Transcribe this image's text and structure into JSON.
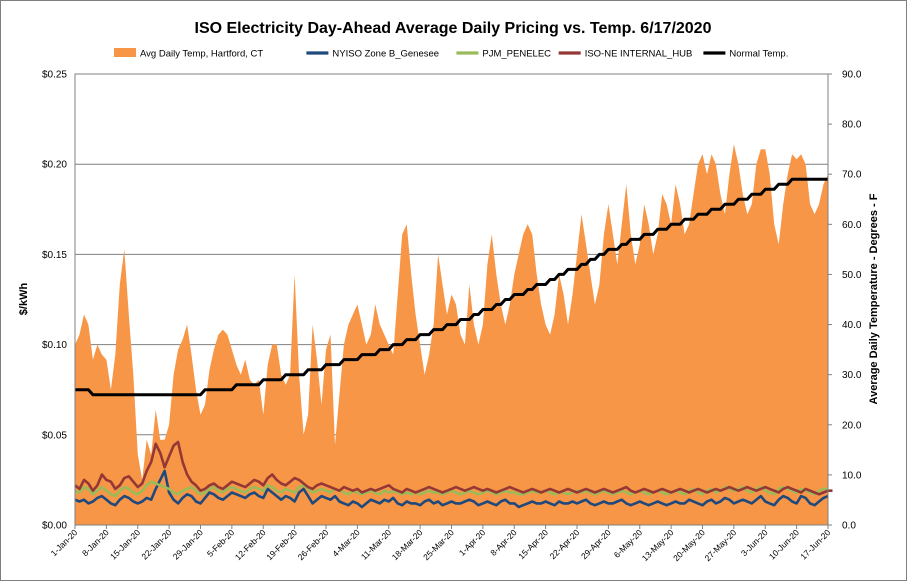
{
  "chart_data": {
    "type": "area",
    "title": "ISO Electricity Day-Ahead Average Daily Pricing vs. Temp. 6/17/2020",
    "ylabel_left": "$/kWh",
    "ylabel_right": "Average Daily Temperature - Degrees - F",
    "ylim_left": [
      0,
      0.25
    ],
    "ylim_right": [
      0,
      90
    ],
    "left_ticks": [
      "$0.00",
      "$0.05",
      "$0.10",
      "$0.15",
      "$0.20",
      "$0.25"
    ],
    "right_ticks": [
      "0.0",
      "10.0",
      "20.0",
      "30.0",
      "40.0",
      "50.0",
      "60.0",
      "70.0",
      "80.0",
      "90.0"
    ],
    "grid": true,
    "legend_position": "top",
    "x_labels": [
      "1-Jan-20",
      "8-Jan-20",
      "15-Jan-20",
      "22-Jan-20",
      "29-Jan-20",
      "5-Feb-20",
      "12-Feb-20",
      "19-Feb-20",
      "26-Feb-20",
      "4-Mar-20",
      "11-Mar-20",
      "18-Mar-20",
      "25-Mar-20",
      "1-Apr-20",
      "8-Apr-20",
      "15-Apr-20",
      "22-Apr-20",
      "29-Apr-20",
      "6-May-20",
      "13-May-20",
      "20-May-20",
      "27-May-20",
      "3-Jun-20",
      "10-Jun-20",
      "17-Jun-20"
    ],
    "day_count": 169,
    "series": [
      {
        "name": "Avg Daily Temp, Hartford, CT",
        "axis": "right",
        "kind": "area",
        "color": "#f79646",
        "values": [
          36,
          38,
          42,
          40,
          33,
          36,
          34,
          33,
          27,
          34,
          48,
          55,
          42,
          30,
          14,
          9,
          17,
          14,
          23,
          17,
          17,
          20,
          30,
          35,
          37,
          40,
          34,
          27,
          22,
          24,
          31,
          35,
          38,
          39,
          38,
          35,
          32,
          30,
          33,
          29,
          28,
          29,
          22,
          32,
          36,
          36,
          30,
          28,
          30,
          50,
          30,
          18,
          22,
          40,
          33,
          24,
          35,
          38,
          16,
          26,
          36,
          40,
          42,
          44,
          40,
          36,
          38,
          44,
          40,
          38,
          36,
          34,
          46,
          58,
          60,
          50,
          42,
          36,
          30,
          34,
          40,
          54,
          48,
          42,
          46,
          44,
          38,
          36,
          48,
          40,
          36,
          40,
          52,
          58,
          50,
          44,
          40,
          44,
          50,
          54,
          58,
          60,
          58,
          50,
          44,
          40,
          38,
          42,
          50,
          46,
          40,
          46,
          54,
          62,
          56,
          50,
          44,
          48,
          58,
          64,
          58,
          52,
          60,
          68,
          58,
          52,
          56,
          64,
          60,
          54,
          58,
          66,
          64,
          60,
          68,
          64,
          58,
          60,
          66,
          72,
          74,
          70,
          74,
          72,
          66,
          62,
          70,
          76,
          72,
          66,
          62,
          64,
          72,
          75,
          75,
          70,
          60,
          56,
          64,
          70,
          74,
          73,
          74,
          72,
          64,
          62,
          64,
          68,
          70
        ]
      },
      {
        "name": "NYISO Zone B_Genesee",
        "axis": "left",
        "kind": "line",
        "color": "#1f497d",
        "values": [
          0.014,
          0.013,
          0.014,
          0.012,
          0.013,
          0.015,
          0.016,
          0.014,
          0.012,
          0.011,
          0.014,
          0.016,
          0.015,
          0.013,
          0.012,
          0.013,
          0.015,
          0.014,
          0.02,
          0.025,
          0.03,
          0.018,
          0.014,
          0.012,
          0.015,
          0.017,
          0.016,
          0.013,
          0.012,
          0.015,
          0.018,
          0.017,
          0.015,
          0.014,
          0.016,
          0.018,
          0.017,
          0.016,
          0.015,
          0.017,
          0.018,
          0.016,
          0.015,
          0.02,
          0.018,
          0.016,
          0.014,
          0.016,
          0.015,
          0.013,
          0.018,
          0.02,
          0.016,
          0.012,
          0.014,
          0.016,
          0.015,
          0.014,
          0.016,
          0.013,
          0.012,
          0.011,
          0.013,
          0.012,
          0.01,
          0.012,
          0.014,
          0.013,
          0.012,
          0.014,
          0.013,
          0.015,
          0.012,
          0.011,
          0.013,
          0.012,
          0.012,
          0.011,
          0.013,
          0.014,
          0.012,
          0.013,
          0.011,
          0.012,
          0.013,
          0.012,
          0.012,
          0.013,
          0.014,
          0.013,
          0.011,
          0.012,
          0.013,
          0.012,
          0.011,
          0.013,
          0.014,
          0.012,
          0.012,
          0.01,
          0.011,
          0.012,
          0.013,
          0.012,
          0.012,
          0.013,
          0.012,
          0.011,
          0.013,
          0.012,
          0.012,
          0.013,
          0.012,
          0.013,
          0.014,
          0.012,
          0.011,
          0.012,
          0.013,
          0.012,
          0.012,
          0.013,
          0.014,
          0.012,
          0.011,
          0.012,
          0.013,
          0.012,
          0.011,
          0.012,
          0.013,
          0.012,
          0.011,
          0.012,
          0.013,
          0.012,
          0.012,
          0.014,
          0.013,
          0.012,
          0.011,
          0.013,
          0.014,
          0.012,
          0.013,
          0.015,
          0.014,
          0.012,
          0.013,
          0.014,
          0.013,
          0.012,
          0.014,
          0.016,
          0.013,
          0.012,
          0.011,
          0.014,
          0.016,
          0.015,
          0.013,
          0.012,
          0.016,
          0.015,
          0.012,
          0.011,
          0.013,
          0.015,
          0.016
        ]
      },
      {
        "name": "PJM_PENELEC",
        "axis": "left",
        "kind": "line",
        "color": "#9bbb59",
        "values": [
          0.019,
          0.018,
          0.021,
          0.02,
          0.017,
          0.019,
          0.021,
          0.019,
          0.017,
          0.016,
          0.019,
          0.021,
          0.02,
          0.018,
          0.017,
          0.019,
          0.022,
          0.024,
          0.023,
          0.022,
          0.021,
          0.02,
          0.018,
          0.017,
          0.019,
          0.02,
          0.021,
          0.019,
          0.017,
          0.018,
          0.02,
          0.021,
          0.019,
          0.018,
          0.02,
          0.021,
          0.02,
          0.019,
          0.018,
          0.02,
          0.021,
          0.02,
          0.019,
          0.022,
          0.021,
          0.019,
          0.018,
          0.02,
          0.019,
          0.018,
          0.021,
          0.022,
          0.02,
          0.018,
          0.019,
          0.02,
          0.019,
          0.018,
          0.02,
          0.019,
          0.018,
          0.017,
          0.019,
          0.018,
          0.017,
          0.018,
          0.019,
          0.018,
          0.017,
          0.019,
          0.018,
          0.019,
          0.018,
          0.017,
          0.018,
          0.017,
          0.018,
          0.017,
          0.018,
          0.019,
          0.018,
          0.018,
          0.017,
          0.018,
          0.019,
          0.018,
          0.017,
          0.018,
          0.019,
          0.018,
          0.017,
          0.018,
          0.019,
          0.018,
          0.017,
          0.018,
          0.019,
          0.018,
          0.018,
          0.017,
          0.017,
          0.018,
          0.019,
          0.018,
          0.018,
          0.019,
          0.018,
          0.017,
          0.018,
          0.018,
          0.017,
          0.018,
          0.019,
          0.018,
          0.019,
          0.018,
          0.017,
          0.018,
          0.019,
          0.018,
          0.017,
          0.018,
          0.019,
          0.018,
          0.017,
          0.018,
          0.019,
          0.018,
          0.017,
          0.018,
          0.019,
          0.018,
          0.017,
          0.018,
          0.019,
          0.018,
          0.017,
          0.019,
          0.02,
          0.018,
          0.017,
          0.019,
          0.02,
          0.018,
          0.019,
          0.021,
          0.02,
          0.019,
          0.02,
          0.021,
          0.019,
          0.018,
          0.02,
          0.021,
          0.019,
          0.018,
          0.017,
          0.02,
          0.021,
          0.02,
          0.019,
          0.018,
          0.02,
          0.019,
          0.018,
          0.017,
          0.019,
          0.02,
          0.02
        ]
      },
      {
        "name": "ISO-NE INTERNAL_HUB",
        "axis": "left",
        "kind": "line",
        "color": "#953735",
        "values": [
          0.022,
          0.02,
          0.025,
          0.023,
          0.019,
          0.022,
          0.028,
          0.025,
          0.024,
          0.02,
          0.022,
          0.026,
          0.027,
          0.024,
          0.021,
          0.023,
          0.03,
          0.035,
          0.045,
          0.04,
          0.032,
          0.038,
          0.044,
          0.046,
          0.035,
          0.028,
          0.024,
          0.022,
          0.019,
          0.02,
          0.022,
          0.023,
          0.021,
          0.02,
          0.022,
          0.024,
          0.023,
          0.022,
          0.021,
          0.023,
          0.025,
          0.024,
          0.022,
          0.026,
          0.028,
          0.025,
          0.023,
          0.022,
          0.024,
          0.026,
          0.025,
          0.023,
          0.021,
          0.02,
          0.022,
          0.023,
          0.022,
          0.021,
          0.02,
          0.019,
          0.021,
          0.02,
          0.019,
          0.02,
          0.018,
          0.019,
          0.02,
          0.019,
          0.02,
          0.021,
          0.022,
          0.02,
          0.019,
          0.018,
          0.02,
          0.019,
          0.018,
          0.019,
          0.02,
          0.021,
          0.02,
          0.019,
          0.018,
          0.019,
          0.02,
          0.021,
          0.02,
          0.019,
          0.02,
          0.021,
          0.02,
          0.019,
          0.02,
          0.019,
          0.018,
          0.019,
          0.02,
          0.021,
          0.02,
          0.019,
          0.018,
          0.019,
          0.02,
          0.019,
          0.018,
          0.019,
          0.02,
          0.019,
          0.018,
          0.019,
          0.02,
          0.019,
          0.018,
          0.019,
          0.02,
          0.019,
          0.018,
          0.019,
          0.02,
          0.019,
          0.018,
          0.019,
          0.02,
          0.021,
          0.019,
          0.018,
          0.019,
          0.02,
          0.019,
          0.018,
          0.019,
          0.02,
          0.019,
          0.018,
          0.019,
          0.02,
          0.019,
          0.018,
          0.019,
          0.02,
          0.019,
          0.018,
          0.019,
          0.02,
          0.019,
          0.02,
          0.021,
          0.02,
          0.019,
          0.02,
          0.021,
          0.02,
          0.019,
          0.02,
          0.021,
          0.02,
          0.019,
          0.018,
          0.02,
          0.021,
          0.02,
          0.019,
          0.018,
          0.02,
          0.019,
          0.018,
          0.017,
          0.018,
          0.019,
          0.019
        ]
      },
      {
        "name": "Normal Temp.",
        "axis": "right",
        "kind": "line",
        "color": "#000000",
        "values": [
          27.0,
          27.0,
          27.0,
          27.0,
          26.0,
          26.0,
          26.0,
          26.0,
          26.0,
          26.0,
          26.0,
          26.0,
          26.0,
          26.0,
          26.0,
          26.0,
          26.0,
          26.0,
          26.0,
          26.0,
          26.0,
          26.0,
          26.0,
          26.0,
          26.0,
          26.0,
          26.0,
          26.0,
          26.0,
          27.0,
          27.0,
          27.0,
          27.0,
          27.0,
          27.0,
          27.0,
          28.0,
          28.0,
          28.0,
          28.0,
          28.0,
          28.0,
          29.0,
          29.0,
          29.0,
          29.0,
          29.0,
          30.0,
          30.0,
          30.0,
          30.0,
          30.0,
          31.0,
          31.0,
          31.0,
          31.0,
          32.0,
          32.0,
          32.0,
          32.0,
          33.0,
          33.0,
          33.0,
          33.0,
          34.0,
          34.0,
          34.0,
          34.0,
          35.0,
          35.0,
          35.0,
          36.0,
          36.0,
          36.0,
          37.0,
          37.0,
          37.0,
          38.0,
          38.0,
          38.0,
          39.0,
          39.0,
          39.0,
          40.0,
          40.0,
          40.0,
          41.0,
          41.0,
          41.0,
          42.0,
          42.0,
          43.0,
          43.0,
          43.0,
          44.0,
          44.0,
          45.0,
          45.0,
          46.0,
          46.0,
          46.0,
          47.0,
          47.0,
          48.0,
          48.0,
          48.0,
          49.0,
          49.0,
          50.0,
          50.0,
          51.0,
          51.0,
          51.0,
          52.0,
          52.0,
          53.0,
          53.0,
          54.0,
          54.0,
          55.0,
          55.0,
          55.0,
          56.0,
          56.0,
          57.0,
          57.0,
          57.0,
          58.0,
          58.0,
          58.0,
          59.0,
          59.0,
          59.0,
          60.0,
          60.0,
          60.0,
          61.0,
          61.0,
          61.0,
          62.0,
          62.0,
          62.0,
          63.0,
          63.0,
          63.0,
          64.0,
          64.0,
          64.0,
          65.0,
          65.0,
          65.0,
          66.0,
          66.0,
          66.0,
          67.0,
          67.0,
          67.0,
          68.0,
          68.0,
          68.0,
          69.0,
          69.0,
          69.0,
          69.0,
          69.0,
          69.0,
          69.0,
          69.0,
          69.0
        ]
      }
    ]
  }
}
